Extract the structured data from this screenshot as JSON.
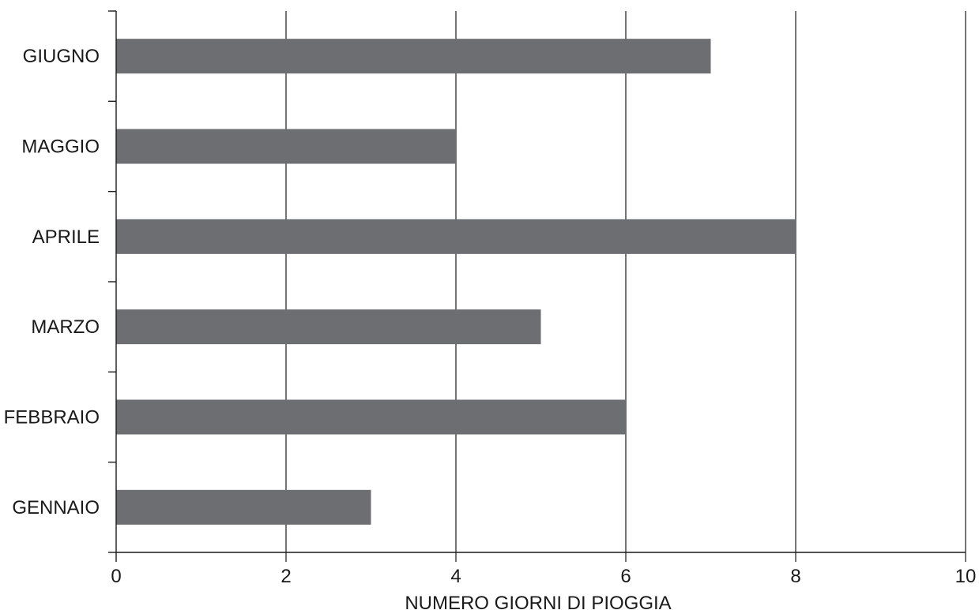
{
  "chart_data": {
    "type": "bar",
    "orientation": "horizontal",
    "categories": [
      "GENNAIO",
      "FEBBRAIO",
      "MARZO",
      "APRILE",
      "MAGGIO",
      "GIUGNO"
    ],
    "values": [
      3,
      6,
      5,
      8,
      4,
      7
    ],
    "xlabel": "NUMERO GIORNI DI PIOGGIA",
    "ylabel": "",
    "xlim": [
      0,
      10
    ],
    "xticks": [
      0,
      2,
      4,
      6,
      8,
      10
    ],
    "grid": true,
    "bar_color": "#6d6e72"
  }
}
